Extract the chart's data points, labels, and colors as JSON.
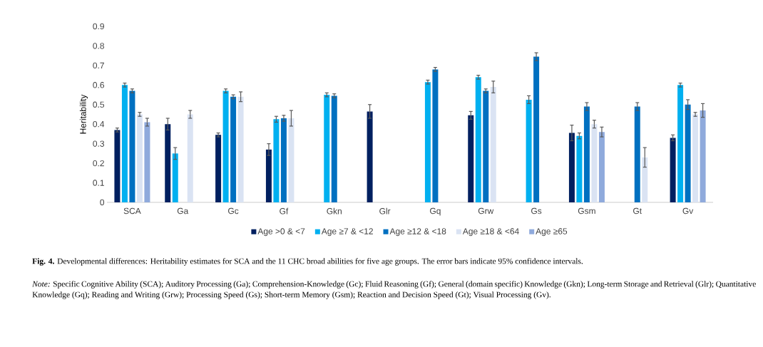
{
  "chart_data": {
    "type": "bar",
    "ylabel": "Heritability",
    "categories": [
      "SCA",
      "Ga",
      "Gc",
      "Gf",
      "Gkn",
      "Glr",
      "Gq",
      "Grw",
      "Gs",
      "Gsm",
      "Gt",
      "Gv"
    ],
    "series": [
      {
        "name": "Age >0 & <7",
        "color": "#002060",
        "values": [
          0.37,
          0.4,
          0.345,
          0.27,
          null,
          0.465,
          null,
          0.445,
          null,
          0.355,
          null,
          0.33
        ],
        "errors": [
          0.01,
          0.03,
          0.01,
          0.03,
          null,
          0.035,
          null,
          0.02,
          null,
          0.04,
          null,
          0.015
        ]
      },
      {
        "name": "Age ≥7 & <12",
        "color": "#00b0f0",
        "values": [
          0.6,
          0.25,
          0.57,
          0.425,
          0.55,
          null,
          0.615,
          0.64,
          0.525,
          0.34,
          null,
          0.6
        ],
        "errors": [
          0.01,
          0.03,
          0.01,
          0.015,
          0.01,
          null,
          0.01,
          0.01,
          0.02,
          0.015,
          null,
          0.01
        ]
      },
      {
        "name": "Age ≥12 & <18",
        "color": "#0070c0",
        "values": [
          0.57,
          null,
          0.54,
          0.43,
          0.545,
          null,
          0.68,
          0.57,
          0.745,
          0.49,
          0.49,
          0.5
        ],
        "errors": [
          0.01,
          null,
          0.01,
          0.015,
          0.01,
          null,
          0.01,
          0.01,
          0.02,
          0.02,
          0.02,
          0.025
        ]
      },
      {
        "name": "Age ≥18 & <64",
        "color": "#dae3f3",
        "values": [
          0.45,
          0.45,
          0.54,
          0.43,
          null,
          null,
          null,
          0.59,
          null,
          0.4,
          0.23,
          0.45
        ],
        "errors": [
          0.01,
          0.02,
          0.025,
          0.04,
          null,
          null,
          null,
          0.03,
          null,
          0.02,
          0.05,
          0.01
        ]
      },
      {
        "name": "Age ≥65",
        "color": "#8faadc",
        "values": [
          0.41,
          null,
          null,
          null,
          null,
          null,
          null,
          null,
          null,
          0.36,
          null,
          0.47
        ],
        "errors": [
          0.02,
          null,
          null,
          null,
          null,
          null,
          null,
          null,
          null,
          0.025,
          null,
          0.035
        ]
      }
    ],
    "ylim": [
      0,
      0.9
    ],
    "yticks": [
      0,
      0.1,
      0.2,
      0.3,
      0.4,
      0.5,
      0.6,
      0.7,
      0.8,
      0.9
    ],
    "legend": "bottom",
    "annotations": [
      "**Fig. 4.** Developmental differences: Heritability estimates for SCA and the 11 CHC broad abilities for five age groups. The error bars indicate 95% confidence intervals.",
      "*Note:* Specific Cognitive Ability (SCA); Auditory Processing (Ga); Comprehension-Knowledge (Gc); Fluid Reasoning (Gf); General (domain specific) Knowledge (Gkn); Long-term Storage and Retrieval (Glr); Quantitative Knowledge (Gq); Reading and Writing (Grw); Processing Speed (Gs); Short-term Memory (Gsm); Reaction and Decision Speed (Gt); Visual Processing (Gv)."
    ]
  }
}
